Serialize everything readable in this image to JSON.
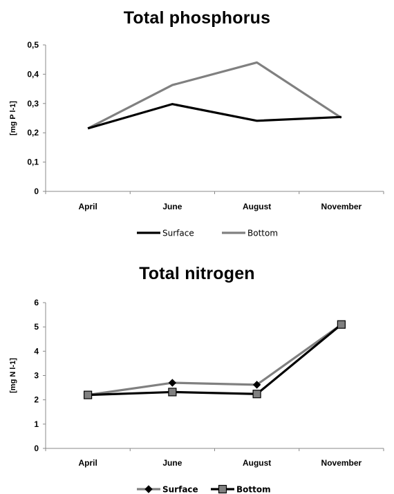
{
  "chart_data": [
    {
      "type": "line",
      "title": "Total phosphorus",
      "ylabel": "[mg P l-1]",
      "categories": [
        "April",
        "June",
        "August",
        "November"
      ],
      "ylim": [
        0,
        0.5
      ],
      "yticks": [
        "0",
        "0,1",
        "0,2",
        "0,3",
        "0,4",
        "0,5"
      ],
      "series": [
        {
          "name": "Surface",
          "values": [
            0.215,
            0.298,
            0.241,
            0.254
          ],
          "color": "#000000",
          "marker": "none"
        },
        {
          "name": "Bottom",
          "values": [
            0.215,
            0.363,
            0.44,
            0.251
          ],
          "color": "#808080",
          "marker": "none"
        }
      ],
      "legend": "bottom",
      "grid": false
    },
    {
      "type": "line",
      "title": "Total nitrogen",
      "ylabel": "[mg N l-1]",
      "categories": [
        "April",
        "June",
        "August",
        "November"
      ],
      "ylim": [
        0,
        6
      ],
      "yticks": [
        "0",
        "1",
        "2",
        "3",
        "4",
        "5",
        "6"
      ],
      "series": [
        {
          "name": "Surface",
          "values": [
            2.2,
            2.7,
            2.62,
            5.1
          ],
          "color": "#808080",
          "marker": "diamond"
        },
        {
          "name": "Bottom",
          "values": [
            2.2,
            2.32,
            2.24,
            5.1
          ],
          "color": "#000000",
          "marker": "square"
        }
      ],
      "legend": "bottom",
      "grid": false
    }
  ]
}
